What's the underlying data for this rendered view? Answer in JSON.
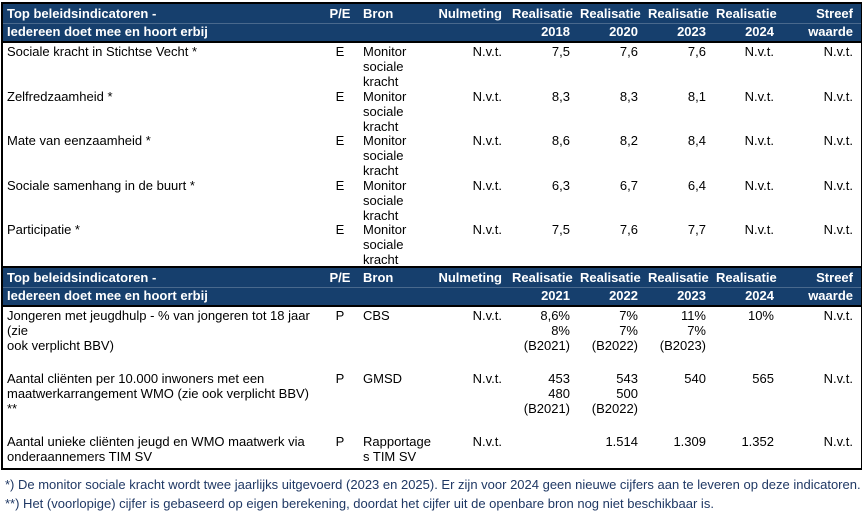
{
  "colors": {
    "header_bg": "#163F6D",
    "header_text": "#FFFFFF",
    "body_text": "#000000",
    "footnote_text": "#1F3864",
    "border": "#000000"
  },
  "sections": [
    {
      "header": {
        "title": "Top beleidsindicatoren -\nIedereen doet mee en hoort erbij",
        "pe": "P/E",
        "bron": "Bron",
        "nulmeting": "Nulmeting",
        "y1": "Realisatie\n2018",
        "y2": "Realisatie\n2020",
        "y3": "Realisatie\n2023",
        "y4": "Realisatie\n2024",
        "streef": "Streef\nwaarde"
      },
      "rows": [
        {
          "name": "Sociale kracht in Stichtse Vecht *",
          "pe": "E",
          "bron": "Monitor\nsociale\nkracht",
          "nulmeting": "N.v.t.",
          "v1": "7,5",
          "v2": "7,6",
          "v3": "7,6",
          "v4": "N.v.t.",
          "streef": "N.v.t."
        },
        {
          "name": "Zelfredzaamheid *",
          "pe": "E",
          "bron": "Monitor\nsociale\nkracht",
          "nulmeting": "N.v.t.",
          "v1": "8,3",
          "v2": "8,3",
          "v3": "8,1",
          "v4": "N.v.t.",
          "streef": "N.v.t."
        },
        {
          "name": "Mate van eenzaamheid *",
          "pe": "E",
          "bron": "Monitor\nsociale\nkracht",
          "nulmeting": "N.v.t.",
          "v1": "8,6",
          "v2": "8,2",
          "v3": "8,4",
          "v4": "N.v.t.",
          "streef": "N.v.t."
        },
        {
          "name": "Sociale samenhang in de buurt *",
          "pe": "E",
          "bron": "Monitor\nsociale\nkracht",
          "nulmeting": "N.v.t.",
          "v1": "6,3",
          "v2": "6,7",
          "v3": "6,4",
          "v4": "N.v.t.",
          "streef": "N.v.t."
        },
        {
          "name": "Participatie *",
          "pe": "E",
          "bron": "Monitor\nsociale\nkracht",
          "nulmeting": "N.v.t.",
          "v1": "7,5",
          "v2": "7,6",
          "v3": "7,7",
          "v4": "N.v.t.",
          "streef": "N.v.t."
        }
      ]
    },
    {
      "header": {
        "title": "Top beleidsindicatoren -\nIedereen doet mee en hoort erbij",
        "pe": "P/E",
        "bron": "Bron",
        "nulmeting": "Nulmeting",
        "y1": "Realisatie\n2021",
        "y2": "Realisatie\n2022",
        "y3": "Realisatie\n2023",
        "y4": "Realisatie\n2024",
        "streef": "Streef\nwaarde"
      },
      "rows": [
        {
          "name": "Jongeren met jeugdhulp - % van jongeren tot 18 jaar (zie\nook verplicht BBV)",
          "pe": "P",
          "bron": "CBS",
          "nulmeting": "N.v.t.",
          "v1": "8,6%\n8%\n(B2021)",
          "v2": "7%\n7%\n(B2022)",
          "v3": "11%\n7%\n(B2023)",
          "v4": "10%",
          "streef": "N.v.t."
        },
        {
          "name": "Aantal cliënten per 10.000 inwoners met een\nmaatwerkarrangement WMO (zie ook verplicht BBV) **",
          "pe": "P",
          "bron": "GMSD",
          "nulmeting": "N.v.t.",
          "v1": "453\n480\n(B2021)",
          "v2": "543\n500\n(B2022)",
          "v3": "540",
          "v4": "565",
          "streef": "N.v.t."
        },
        {
          "name": "Aantal unieke cliënten jeugd en WMO maatwerk via\nonderaannemers TIM SV",
          "pe": "P",
          "bron": "Rapportage\ns TIM SV",
          "nulmeting": "N.v.t.",
          "v1": "",
          "v2": "1.514",
          "v3": "1.309",
          "v4": "1.352",
          "streef": "N.v.t."
        }
      ]
    }
  ],
  "footnotes": [
    "*) De monitor sociale kracht wordt twee jaarlijks uitgevoerd (2023 en 2025). Er zijn voor 2024 geen nieuwe cijfers aan te leveren op deze indicatoren.",
    "**) Het (voorlopige) cijfer is gebaseerd op eigen berekening, doordat het cijfer uit de openbare bron nog niet beschikbaar is."
  ]
}
